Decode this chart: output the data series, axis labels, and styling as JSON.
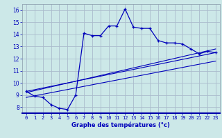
{
  "xlabel": "Graphe des températures (°c)",
  "background_color": "#cce8e8",
  "grid_color": "#aabbcc",
  "line_color": "#0000bb",
  "xlim": [
    -0.5,
    23.5
  ],
  "ylim": [
    7.5,
    16.5
  ],
  "xticks": [
    0,
    1,
    2,
    3,
    4,
    5,
    6,
    7,
    8,
    9,
    10,
    11,
    12,
    13,
    14,
    15,
    16,
    17,
    18,
    19,
    20,
    21,
    22,
    23
  ],
  "yticks": [
    8,
    9,
    10,
    11,
    12,
    13,
    14,
    15,
    16
  ],
  "main_x": [
    0,
    1,
    2,
    3,
    4,
    5,
    6,
    7,
    8,
    9,
    10,
    11,
    12,
    13,
    14,
    15,
    16,
    17,
    18,
    19,
    20,
    21,
    22,
    23
  ],
  "main_y": [
    9.3,
    8.9,
    8.8,
    8.2,
    7.9,
    7.8,
    9.0,
    14.1,
    13.9,
    13.9,
    14.7,
    14.7,
    16.1,
    14.6,
    14.5,
    14.5,
    13.5,
    13.3,
    13.3,
    13.2,
    12.8,
    12.4,
    12.6,
    12.5
  ],
  "line2_x": [
    0,
    23
  ],
  "line2_y": [
    9.3,
    12.5
  ],
  "line3_x": [
    0,
    23
  ],
  "line3_y": [
    9.2,
    12.8
  ],
  "line4_x": [
    0,
    23
  ],
  "line4_y": [
    8.8,
    11.8
  ]
}
